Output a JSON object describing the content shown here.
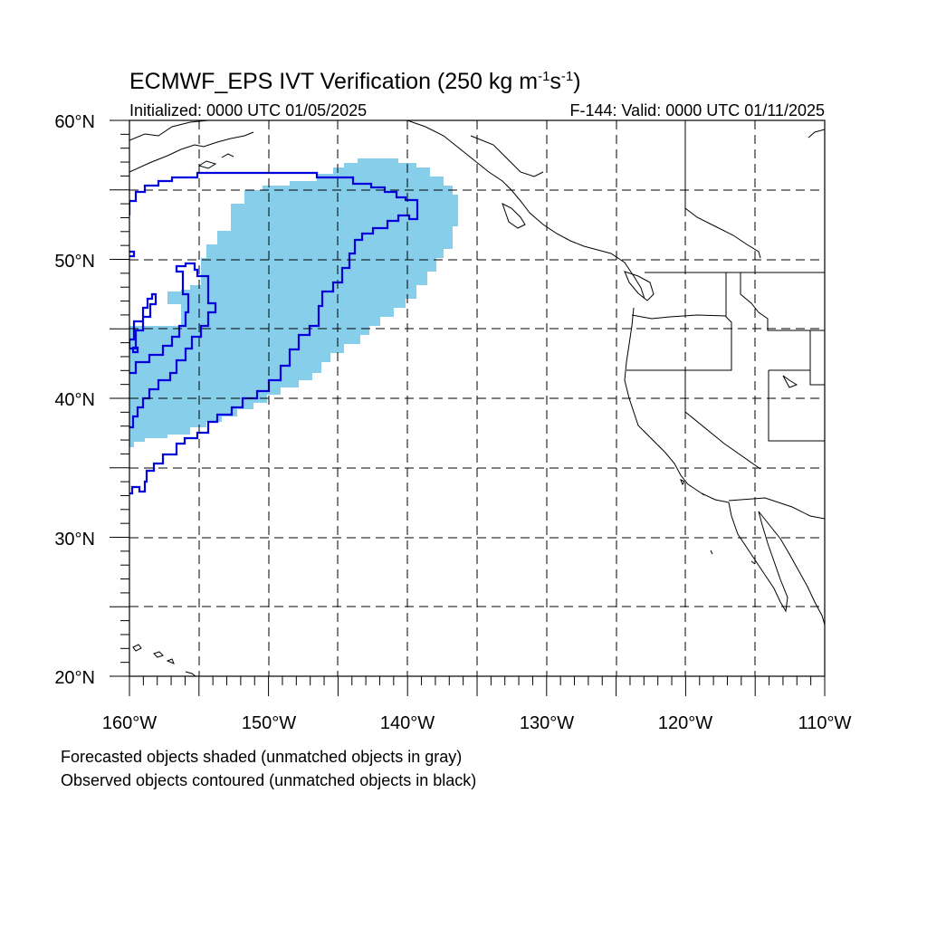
{
  "title": {
    "main_prefix": "ECMWF_EPS IVT Verification (250 kg m",
    "exp1": "-1",
    "main_mid": "s",
    "exp2": "-1",
    "main_suffix": ")",
    "initialized": "Initialized: 0000 UTC 01/05/2025",
    "valid": "F-144: Valid: 0000 UTC 01/11/2025"
  },
  "axes": {
    "lat_labels": [
      "60°N",
      "50°N",
      "40°N",
      "30°N",
      "20°N"
    ],
    "lon_labels": [
      "160°W",
      "150°W",
      "140°W",
      "130°W",
      "120°W",
      "110°W"
    ],
    "lon_range": [
      -160,
      -110
    ],
    "lat_range": [
      20,
      60
    ],
    "grid": "dashed, every 5°"
  },
  "legend": {
    "forecast": "Forecasted objects shaded (unmatched objects in gray)",
    "observed": "Observed objects contoured (unmatched objects in black)"
  },
  "colors": {
    "forecast_fill": "#87ceeb",
    "observed_contour": "#0000dd",
    "coastline": "#000000",
    "grid": "#000000"
  }
}
